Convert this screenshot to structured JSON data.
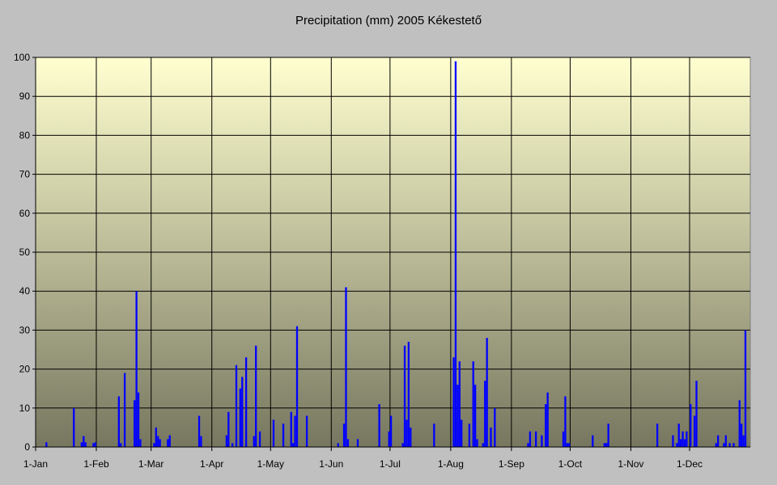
{
  "chart_data": {
    "type": "bar",
    "title": "Precipitation (mm) 2005 Kékestető",
    "xlabel": "",
    "ylabel": "",
    "ylim": [
      0,
      100
    ],
    "y_ticks": [
      0,
      10,
      20,
      30,
      40,
      50,
      60,
      70,
      80,
      90,
      100
    ],
    "x_tick_labels": [
      {
        "label": "1-Jan",
        "day": 1
      },
      {
        "label": "1-Feb",
        "day": 32
      },
      {
        "label": "1-Mar",
        "day": 60
      },
      {
        "label": "1-Apr",
        "day": 91
      },
      {
        "label": "1-May",
        "day": 121
      },
      {
        "label": "1-Jun",
        "day": 152
      },
      {
        "label": "1-Jul",
        "day": 182
      },
      {
        "label": "1-Aug",
        "day": 213
      },
      {
        "label": "1-Sep",
        "day": 244
      },
      {
        "label": "1-Oct",
        "day": 274
      },
      {
        "label": "1-Nov",
        "day": 305
      },
      {
        "label": "1-Dec",
        "day": 335
      }
    ],
    "grid": true,
    "bar_color": "#0000ff",
    "background_gradient": [
      "#ffffd0",
      "#777760"
    ],
    "points": [
      {
        "day": 6,
        "value": 1.2
      },
      {
        "day": 20,
        "value": 10
      },
      {
        "day": 24,
        "value": 1.2
      },
      {
        "day": 25,
        "value": 2.8
      },
      {
        "day": 26,
        "value": 1.2
      },
      {
        "day": 30,
        "value": 1
      },
      {
        "day": 31,
        "value": 1.2
      },
      {
        "day": 43,
        "value": 13
      },
      {
        "day": 44,
        "value": 1
      },
      {
        "day": 46,
        "value": 19
      },
      {
        "day": 51,
        "value": 12
      },
      {
        "day": 52,
        "value": 40
      },
      {
        "day": 53,
        "value": 14
      },
      {
        "day": 54,
        "value": 2
      },
      {
        "day": 61,
        "value": 1
      },
      {
        "day": 62,
        "value": 5
      },
      {
        "day": 63,
        "value": 2.8
      },
      {
        "day": 64,
        "value": 2
      },
      {
        "day": 68,
        "value": 2
      },
      {
        "day": 69,
        "value": 3
      },
      {
        "day": 84,
        "value": 8
      },
      {
        "day": 85,
        "value": 2.8
      },
      {
        "day": 98,
        "value": 3
      },
      {
        "day": 99,
        "value": 9
      },
      {
        "day": 101,
        "value": 1
      },
      {
        "day": 103,
        "value": 21
      },
      {
        "day": 105,
        "value": 15
      },
      {
        "day": 106,
        "value": 18
      },
      {
        "day": 108,
        "value": 23
      },
      {
        "day": 112,
        "value": 2.8
      },
      {
        "day": 113,
        "value": 26
      },
      {
        "day": 115,
        "value": 4
      },
      {
        "day": 122,
        "value": 7
      },
      {
        "day": 127,
        "value": 6
      },
      {
        "day": 131,
        "value": 9
      },
      {
        "day": 132,
        "value": 1
      },
      {
        "day": 133,
        "value": 8
      },
      {
        "day": 134,
        "value": 31
      },
      {
        "day": 139,
        "value": 8
      },
      {
        "day": 155,
        "value": 1
      },
      {
        "day": 158,
        "value": 6
      },
      {
        "day": 159,
        "value": 41
      },
      {
        "day": 160,
        "value": 2
      },
      {
        "day": 165,
        "value": 2
      },
      {
        "day": 176,
        "value": 11
      },
      {
        "day": 181,
        "value": 4
      },
      {
        "day": 182,
        "value": 8
      },
      {
        "day": 188,
        "value": 1
      },
      {
        "day": 189,
        "value": 26
      },
      {
        "day": 190,
        "value": 7
      },
      {
        "day": 191,
        "value": 27
      },
      {
        "day": 192,
        "value": 5
      },
      {
        "day": 204,
        "value": 6
      },
      {
        "day": 214,
        "value": 23
      },
      {
        "day": 215,
        "value": 99
      },
      {
        "day": 216,
        "value": 16
      },
      {
        "day": 217,
        "value": 22
      },
      {
        "day": 218,
        "value": 7
      },
      {
        "day": 222,
        "value": 6
      },
      {
        "day": 224,
        "value": 22
      },
      {
        "day": 225,
        "value": 16
      },
      {
        "day": 226,
        "value": 2
      },
      {
        "day": 229,
        "value": 1
      },
      {
        "day": 230,
        "value": 17
      },
      {
        "day": 231,
        "value": 28
      },
      {
        "day": 233,
        "value": 5
      },
      {
        "day": 235,
        "value": 10
      },
      {
        "day": 252,
        "value": 1
      },
      {
        "day": 253,
        "value": 4
      },
      {
        "day": 256,
        "value": 4
      },
      {
        "day": 259,
        "value": 3
      },
      {
        "day": 261,
        "value": 11
      },
      {
        "day": 262,
        "value": 14
      },
      {
        "day": 270,
        "value": 4
      },
      {
        "day": 271,
        "value": 13
      },
      {
        "day": 272,
        "value": 1
      },
      {
        "day": 273,
        "value": 1
      },
      {
        "day": 285,
        "value": 3
      },
      {
        "day": 291,
        "value": 1
      },
      {
        "day": 292,
        "value": 1
      },
      {
        "day": 293,
        "value": 6
      },
      {
        "day": 318,
        "value": 6
      },
      {
        "day": 326,
        "value": 3
      },
      {
        "day": 328,
        "value": 1
      },
      {
        "day": 329,
        "value": 6
      },
      {
        "day": 330,
        "value": 2
      },
      {
        "day": 331,
        "value": 4
      },
      {
        "day": 332,
        "value": 2
      },
      {
        "day": 333,
        "value": 4
      },
      {
        "day": 335,
        "value": 11
      },
      {
        "day": 337,
        "value": 8
      },
      {
        "day": 338,
        "value": 17
      },
      {
        "day": 348,
        "value": 1
      },
      {
        "day": 349,
        "value": 3
      },
      {
        "day": 352,
        "value": 1
      },
      {
        "day": 353,
        "value": 3
      },
      {
        "day": 355,
        "value": 1
      },
      {
        "day": 357,
        "value": 1
      },
      {
        "day": 360,
        "value": 12
      },
      {
        "day": 361,
        "value": 6
      },
      {
        "day": 362,
        "value": 3
      },
      {
        "day": 363,
        "value": 30
      }
    ]
  }
}
